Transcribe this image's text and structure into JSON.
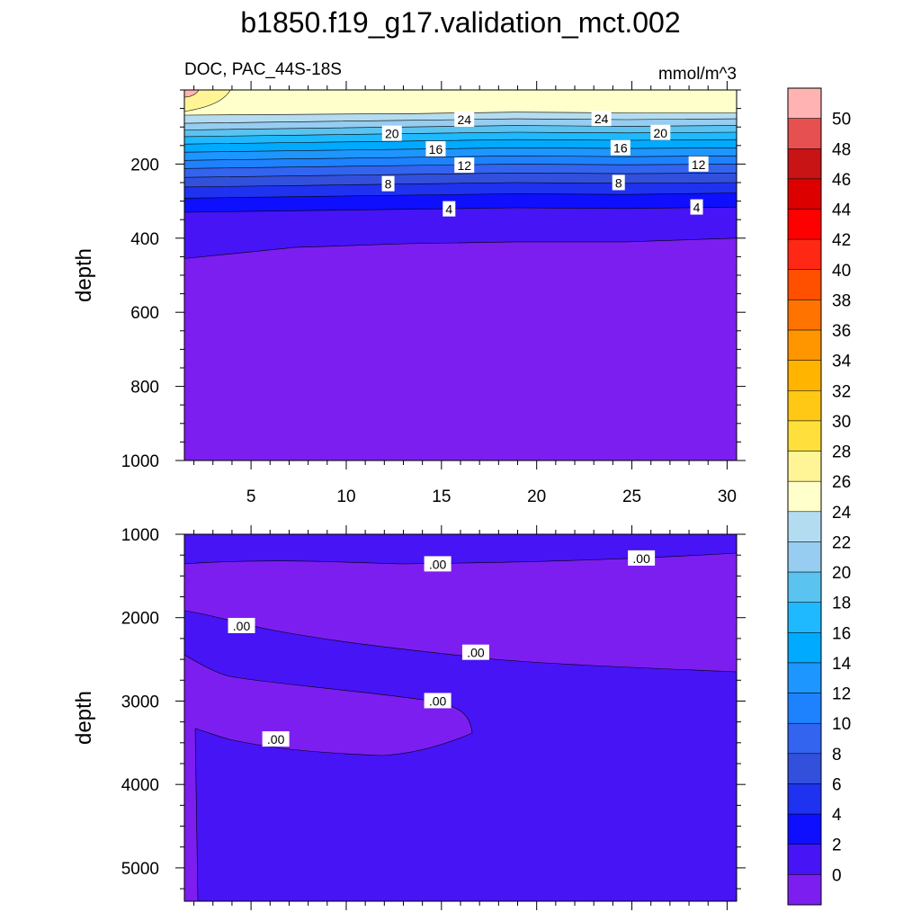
{
  "chart_data": [
    {
      "type": "contour",
      "panel": "upper",
      "title": "b1850.f19_g17.validation_mct.002",
      "left_subtitle": "DOC, PAC_44S-18S",
      "right_subtitle": "mmol/m^3",
      "ylabel": "depth",
      "xlabel": "",
      "xlim": [
        1.5,
        30.5
      ],
      "ylim": [
        1000,
        0
      ],
      "y_reversed": true,
      "x_ticks": [
        5,
        10,
        15,
        20,
        25,
        30
      ],
      "y_ticks": [
        200,
        400,
        600,
        800,
        1000
      ],
      "contour_interval": 2,
      "isolines": [
        {
          "level": 26,
          "depth": [
            68,
            66,
            64,
            60,
            62,
            62
          ]
        },
        {
          "level": 24,
          "depth": [
            90,
            86,
            82,
            78,
            80,
            78
          ]
        },
        {
          "level": 22,
          "depth": [
            108,
            104,
            100,
            96,
            98,
            96
          ]
        },
        {
          "level": 20,
          "depth": [
            126,
            122,
            118,
            114,
            116,
            114
          ]
        },
        {
          "level": 18,
          "depth": [
            146,
            142,
            138,
            134,
            136,
            134
          ]
        },
        {
          "level": 16,
          "depth": [
            168,
            164,
            160,
            156,
            158,
            156
          ]
        },
        {
          "level": 14,
          "depth": [
            190,
            186,
            182,
            178,
            180,
            178
          ]
        },
        {
          "level": 12,
          "depth": [
            212,
            208,
            204,
            200,
            202,
            200
          ]
        },
        {
          "level": 10,
          "depth": [
            236,
            232,
            228,
            224,
            226,
            224
          ]
        },
        {
          "level": 8,
          "depth": [
            262,
            258,
            254,
            250,
            252,
            250
          ]
        },
        {
          "level": 6,
          "depth": [
            292,
            288,
            284,
            280,
            282,
            278
          ]
        },
        {
          "level": 4,
          "depth": [
            330,
            326,
            322,
            318,
            320,
            316
          ]
        },
        {
          "level": 2,
          "depth": [
            455,
            425,
            415,
            410,
            410,
            400
          ]
        }
      ],
      "labels": [
        {
          "text": "24",
          "x": 16.2,
          "y": 80
        },
        {
          "text": "24",
          "x": 23.4,
          "y": 78
        },
        {
          "text": "20",
          "x": 12.4,
          "y": 118
        },
        {
          "text": "20",
          "x": 26.5,
          "y": 116
        },
        {
          "text": "16",
          "x": 14.7,
          "y": 160
        },
        {
          "text": "16",
          "x": 24.4,
          "y": 157
        },
        {
          "text": "12",
          "x": 16.2,
          "y": 204
        },
        {
          "text": "12",
          "x": 28.5,
          "y": 201
        },
        {
          "text": "8",
          "x": 12.2,
          "y": 254
        },
        {
          "text": "8",
          "x": 24.3,
          "y": 251
        },
        {
          "text": "4",
          "x": 15.4,
          "y": 322
        },
        {
          "text": "4",
          "x": 28.4,
          "y": 317
        }
      ],
      "surface_patch": {
        "level": 28,
        "max_x": 2.5
      }
    },
    {
      "type": "contour",
      "panel": "lower",
      "ylabel": "depth",
      "xlabel": "",
      "xlim": [
        1.5,
        30.5
      ],
      "ylim": [
        5400,
        1000
      ],
      "y_reversed": true,
      "x_ticks": [
        5,
        10,
        15,
        20,
        25,
        30
      ],
      "y_ticks": [
        1000,
        2000,
        3000,
        4000,
        5000
      ],
      "labels": [
        {
          "text": ".00",
          "x": 14.8,
          "y": 1360
        },
        {
          "text": ".00",
          "x": 25.5,
          "y": 1290
        },
        {
          "text": ".00",
          "x": 4.5,
          "y": 2100
        },
        {
          "text": ".00",
          "x": 16.8,
          "y": 2420
        },
        {
          "text": ".00",
          "x": 14.8,
          "y": 3000
        },
        {
          "text": ".00",
          "x": 6.3,
          "y": 3460
        }
      ]
    }
  ],
  "colorbar": {
    "labels": [
      "50",
      "48",
      "46",
      "44",
      "42",
      "40",
      "38",
      "36",
      "34",
      "32",
      "30",
      "28",
      "26",
      "24",
      "22",
      "20",
      "18",
      "16",
      "14",
      "12",
      "10",
      "8",
      "6",
      "4",
      "2",
      "0"
    ],
    "colors": [
      "#ffb3b3",
      "#e65050",
      "#c81414",
      "#dc0000",
      "#ff0000",
      "#ff2814",
      "#ff5000",
      "#ff7300",
      "#ff9600",
      "#ffb400",
      "#ffc814",
      "#ffdf3c",
      "#fff596",
      "#ffffcc",
      "#b4dcf0",
      "#96cdf0",
      "#5ac3f0",
      "#1eb9ff",
      "#00aaff",
      "#1e96ff",
      "#1e82ff",
      "#3264f0",
      "#3250dc",
      "#1e32f0",
      "#0f0fff",
      "#4614f5",
      "#7d1ef0"
    ]
  }
}
